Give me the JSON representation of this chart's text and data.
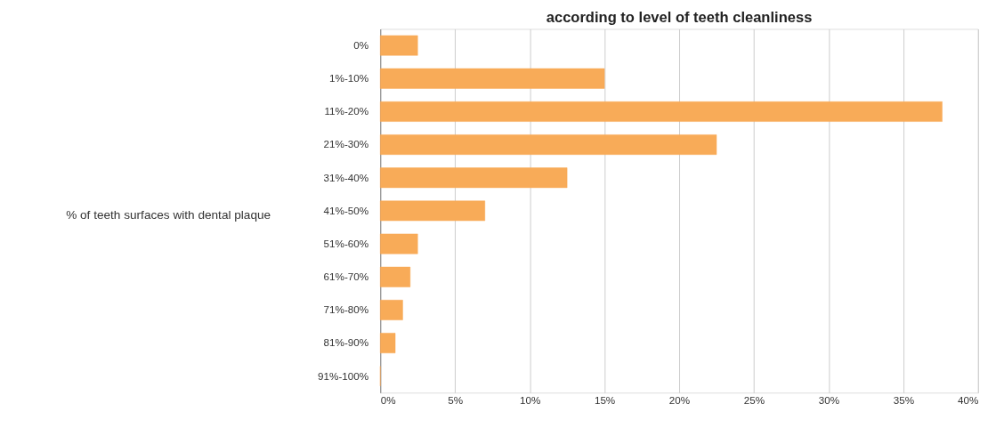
{
  "chart_data": {
    "type": "bar",
    "orientation": "horizontal",
    "title": "according to level of teeth cleanliness",
    "ylabel": "% of teeth surfaces with dental plaque",
    "categories": [
      "0%",
      "1%-10%",
      "11%-20%",
      "21%-30%",
      "31%-40%",
      "41%-50%",
      "51%-60%",
      "61%-70%",
      "71%-80%",
      "81%-90%",
      "91%-100%"
    ],
    "values": [
      2.5,
      15,
      37.6,
      22.5,
      12.5,
      7,
      2.5,
      2,
      1.5,
      1,
      0
    ],
    "color": "#f8ab58",
    "xlim": [
      0,
      40
    ],
    "xticks": [
      {
        "value": 0,
        "label": "0%"
      },
      {
        "value": 5,
        "label": "5%"
      },
      {
        "value": 10,
        "label": "10%"
      },
      {
        "value": 15,
        "label": "15%"
      },
      {
        "value": 20,
        "label": "20%"
      },
      {
        "value": 25,
        "label": "25%"
      },
      {
        "value": 30,
        "label": "30%"
      },
      {
        "value": 35,
        "label": "35%"
      },
      {
        "value": 40,
        "label": "40%"
      }
    ],
    "grid": "x"
  }
}
